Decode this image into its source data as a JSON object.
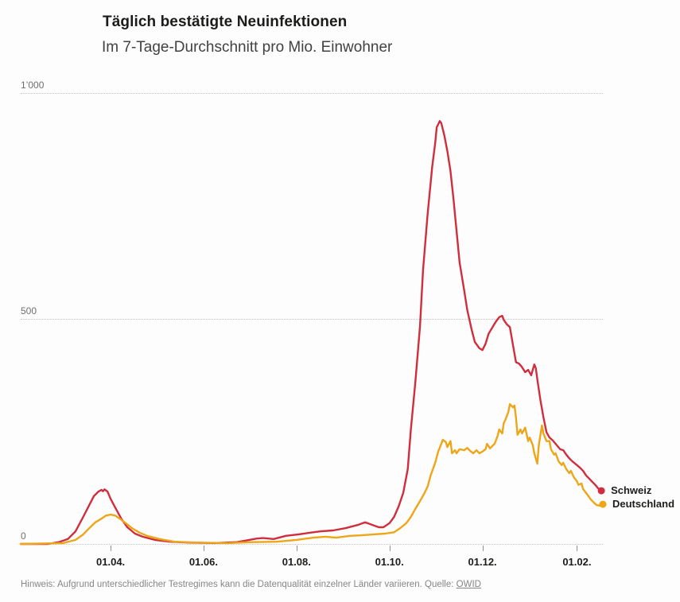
{
  "header": {
    "title": "Täglich bestätigte Neuinfektionen",
    "subtitle": "Im 7-Tage-Durchschnitt pro Mio. Einwohner"
  },
  "footer": {
    "note": "Hinweis: Aufgrund unterschiedlicher Testregimes kann die Datenqualität einzelner Länder variieren. Quelle:",
    "source_link": "OWID"
  },
  "colors": {
    "schweiz": "#d02e3d",
    "deutschland": "#eda618",
    "grid": "#c9c3bc",
    "axis_text": "#6e6e6e",
    "tick_text": "#1d1d1b"
  },
  "chart_data": {
    "type": "line",
    "title": "Täglich bestätigte Neuinfektionen",
    "subtitle": "Im 7-Tage-Durchschnitt pro Mio. Einwohner",
    "grid": "dotted-horizontal",
    "legend_position": "end-of-line",
    "x_axis": {
      "domain": [
        "2020-02-02",
        "2021-02-18"
      ],
      "ticks": [
        {
          "label": "01.04.",
          "date": "2020-04-01"
        },
        {
          "label": "01.06.",
          "date": "2020-06-01"
        },
        {
          "label": "01.08.",
          "date": "2020-08-01"
        },
        {
          "label": "01.10.",
          "date": "2020-10-01"
        },
        {
          "label": "01.12.",
          "date": "2020-12-01"
        },
        {
          "label": "01.02.",
          "date": "2021-02-01"
        }
      ]
    },
    "y_axis": {
      "range": [
        0,
        1000
      ],
      "ticks": [
        {
          "label": "1’000",
          "value": 1000
        },
        {
          "label": "500",
          "value": 500
        },
        {
          "label": "0",
          "value": 0
        }
      ]
    },
    "series": [
      {
        "name": "Schweiz",
        "color": "#d02e3d",
        "points": [
          [
            "2020-02-02",
            0
          ],
          [
            "2020-02-20",
            0
          ],
          [
            "2020-02-27",
            4
          ],
          [
            "2020-03-04",
            11
          ],
          [
            "2020-03-09",
            28
          ],
          [
            "2020-03-14",
            60
          ],
          [
            "2020-03-18",
            86
          ],
          [
            "2020-03-21",
            106
          ],
          [
            "2020-03-24",
            116
          ],
          [
            "2020-03-26",
            120
          ],
          [
            "2020-03-27",
            117
          ],
          [
            "2020-03-28",
            121
          ],
          [
            "2020-03-30",
            116
          ],
          [
            "2020-04-01",
            100
          ],
          [
            "2020-04-04",
            81
          ],
          [
            "2020-04-08",
            56
          ],
          [
            "2020-04-12",
            37
          ],
          [
            "2020-04-17",
            23
          ],
          [
            "2020-04-22",
            16
          ],
          [
            "2020-04-30",
            9
          ],
          [
            "2020-05-10",
            5
          ],
          [
            "2020-05-23",
            3
          ],
          [
            "2020-06-08",
            2
          ],
          [
            "2020-06-23",
            4
          ],
          [
            "2020-07-01",
            9
          ],
          [
            "2020-07-06",
            12
          ],
          [
            "2020-07-10",
            13
          ],
          [
            "2020-07-17",
            11
          ],
          [
            "2020-07-25",
            18
          ],
          [
            "2020-08-02",
            21
          ],
          [
            "2020-08-10",
            25
          ],
          [
            "2020-08-17",
            28
          ],
          [
            "2020-08-25",
            30
          ],
          [
            "2020-09-02",
            35
          ],
          [
            "2020-09-10",
            42
          ],
          [
            "2020-09-15",
            48
          ],
          [
            "2020-09-20",
            42
          ],
          [
            "2020-09-24",
            37
          ],
          [
            "2020-09-27",
            37
          ],
          [
            "2020-10-01",
            46
          ],
          [
            "2020-10-04",
            60
          ],
          [
            "2020-10-07",
            83
          ],
          [
            "2020-10-10",
            113
          ],
          [
            "2020-10-13",
            166
          ],
          [
            "2020-10-15",
            254
          ],
          [
            "2020-10-18",
            360
          ],
          [
            "2020-10-21",
            483
          ],
          [
            "2020-10-23",
            607
          ],
          [
            "2020-10-26",
            730
          ],
          [
            "2020-10-29",
            836
          ],
          [
            "2020-10-31",
            889
          ],
          [
            "2020-11-01",
            924
          ],
          [
            "2020-11-03",
            938
          ],
          [
            "2020-11-04",
            933
          ],
          [
            "2020-11-06",
            906
          ],
          [
            "2020-11-08",
            871
          ],
          [
            "2020-11-10",
            827
          ],
          [
            "2020-11-12",
            765
          ],
          [
            "2020-11-14",
            695
          ],
          [
            "2020-11-16",
            624
          ],
          [
            "2020-11-19",
            563
          ],
          [
            "2020-11-21",
            519
          ],
          [
            "2020-11-24",
            474
          ],
          [
            "2020-11-26",
            448
          ],
          [
            "2020-11-29",
            434
          ],
          [
            "2020-12-01",
            430
          ],
          [
            "2020-12-03",
            444
          ],
          [
            "2020-12-05",
            466
          ],
          [
            "2020-12-08",
            483
          ],
          [
            "2020-12-10",
            494
          ],
          [
            "2020-12-12",
            503
          ],
          [
            "2020-12-14",
            506
          ],
          [
            "2020-12-15",
            497
          ],
          [
            "2020-12-17",
            487
          ],
          [
            "2020-12-19",
            481
          ],
          [
            "2020-12-21",
            442
          ],
          [
            "2020-12-23",
            403
          ],
          [
            "2020-12-25",
            400
          ],
          [
            "2020-12-27",
            392
          ],
          [
            "2020-12-29",
            381
          ],
          [
            "2020-12-31",
            386
          ],
          [
            "2021-01-02",
            374
          ],
          [
            "2021-01-04",
            398
          ],
          [
            "2021-01-05",
            390
          ],
          [
            "2021-01-06",
            365
          ],
          [
            "2021-01-08",
            320
          ],
          [
            "2021-01-10",
            281
          ],
          [
            "2021-01-12",
            248
          ],
          [
            "2021-01-14",
            236
          ],
          [
            "2021-01-16",
            230
          ],
          [
            "2021-01-18",
            222
          ],
          [
            "2021-01-21",
            210
          ],
          [
            "2021-01-23",
            208
          ],
          [
            "2021-01-25",
            198
          ],
          [
            "2021-01-27",
            190
          ],
          [
            "2021-01-29",
            183
          ],
          [
            "2021-02-01",
            175
          ],
          [
            "2021-02-03",
            169
          ],
          [
            "2021-02-05",
            162
          ],
          [
            "2021-02-07",
            152
          ],
          [
            "2021-02-09",
            145
          ],
          [
            "2021-02-11",
            138
          ],
          [
            "2021-02-13",
            131
          ],
          [
            "2021-02-15",
            123
          ],
          [
            "2021-02-17",
            118
          ]
        ]
      },
      {
        "name": "Deutschland",
        "color": "#eda618",
        "points": [
          [
            "2020-02-02",
            0
          ],
          [
            "2020-03-01",
            2
          ],
          [
            "2020-03-09",
            9
          ],
          [
            "2020-03-14",
            21
          ],
          [
            "2020-03-18",
            35
          ],
          [
            "2020-03-22",
            48
          ],
          [
            "2020-03-26",
            56
          ],
          [
            "2020-03-29",
            63
          ],
          [
            "2020-04-01",
            65
          ],
          [
            "2020-04-04",
            63
          ],
          [
            "2020-04-07",
            56
          ],
          [
            "2020-04-11",
            46
          ],
          [
            "2020-04-15",
            35
          ],
          [
            "2020-04-20",
            25
          ],
          [
            "2020-04-25",
            18
          ],
          [
            "2020-05-03",
            11
          ],
          [
            "2020-05-13",
            5
          ],
          [
            "2020-05-28",
            3
          ],
          [
            "2020-06-17",
            2
          ],
          [
            "2020-07-03",
            4
          ],
          [
            "2020-07-19",
            5
          ],
          [
            "2020-08-01",
            9
          ],
          [
            "2020-08-12",
            14
          ],
          [
            "2020-08-20",
            16
          ],
          [
            "2020-08-27",
            14
          ],
          [
            "2020-09-05",
            18
          ],
          [
            "2020-09-12",
            19
          ],
          [
            "2020-09-20",
            21
          ],
          [
            "2020-09-28",
            23
          ],
          [
            "2020-10-04",
            26
          ],
          [
            "2020-10-08",
            35
          ],
          [
            "2020-10-12",
            46
          ],
          [
            "2020-10-15",
            60
          ],
          [
            "2020-10-18",
            78
          ],
          [
            "2020-10-21",
            95
          ],
          [
            "2020-10-24",
            113
          ],
          [
            "2020-10-26",
            127
          ],
          [
            "2020-10-28",
            152
          ],
          [
            "2020-10-31",
            180
          ],
          [
            "2020-11-02",
            205
          ],
          [
            "2020-11-04",
            222
          ],
          [
            "2020-11-05",
            231
          ],
          [
            "2020-11-07",
            226
          ],
          [
            "2020-11-08",
            215
          ],
          [
            "2020-11-10",
            228
          ],
          [
            "2020-11-11",
            201
          ],
          [
            "2020-11-13",
            208
          ],
          [
            "2020-11-14",
            201
          ],
          [
            "2020-11-16",
            210
          ],
          [
            "2020-11-19",
            208
          ],
          [
            "2020-11-21",
            213
          ],
          [
            "2020-11-23",
            206
          ],
          [
            "2020-11-25",
            201
          ],
          [
            "2020-11-27",
            208
          ],
          [
            "2020-11-29",
            201
          ],
          [
            "2020-12-01",
            205
          ],
          [
            "2020-12-03",
            210
          ],
          [
            "2020-12-04",
            222
          ],
          [
            "2020-12-06",
            212
          ],
          [
            "2020-12-08",
            219
          ],
          [
            "2020-12-09",
            222
          ],
          [
            "2020-12-11",
            240
          ],
          [
            "2020-12-12",
            254
          ],
          [
            "2020-12-14",
            245
          ],
          [
            "2020-12-15",
            268
          ],
          [
            "2020-12-16",
            275
          ],
          [
            "2020-12-18",
            293
          ],
          [
            "2020-12-19",
            310
          ],
          [
            "2020-12-21",
            303
          ],
          [
            "2020-12-22",
            307
          ],
          [
            "2020-12-23",
            280
          ],
          [
            "2020-12-24",
            242
          ],
          [
            "2020-12-26",
            254
          ],
          [
            "2020-12-27",
            245
          ],
          [
            "2020-12-29",
            258
          ],
          [
            "2020-12-31",
            228
          ],
          [
            "2021-01-01",
            236
          ],
          [
            "2021-01-03",
            219
          ],
          [
            "2021-01-04",
            201
          ],
          [
            "2021-01-06",
            178
          ],
          [
            "2021-01-07",
            219
          ],
          [
            "2021-01-09",
            263
          ],
          [
            "2021-01-10",
            245
          ],
          [
            "2021-01-12",
            228
          ],
          [
            "2021-01-14",
            228
          ],
          [
            "2021-01-15",
            210
          ],
          [
            "2021-01-17",
            198
          ],
          [
            "2021-01-18",
            201
          ],
          [
            "2021-01-20",
            183
          ],
          [
            "2021-01-22",
            175
          ],
          [
            "2021-01-23",
            180
          ],
          [
            "2021-01-25",
            166
          ],
          [
            "2021-01-27",
            157
          ],
          [
            "2021-01-28",
            162
          ],
          [
            "2021-01-30",
            148
          ],
          [
            "2021-02-01",
            139
          ],
          [
            "2021-02-02",
            131
          ],
          [
            "2021-02-04",
            134
          ],
          [
            "2021-02-05",
            122
          ],
          [
            "2021-02-07",
            113
          ],
          [
            "2021-02-09",
            104
          ],
          [
            "2021-02-10",
            99
          ],
          [
            "2021-02-12",
            92
          ],
          [
            "2021-02-14",
            86
          ],
          [
            "2021-02-16",
            85
          ],
          [
            "2021-02-18",
            88
          ]
        ]
      }
    ]
  }
}
